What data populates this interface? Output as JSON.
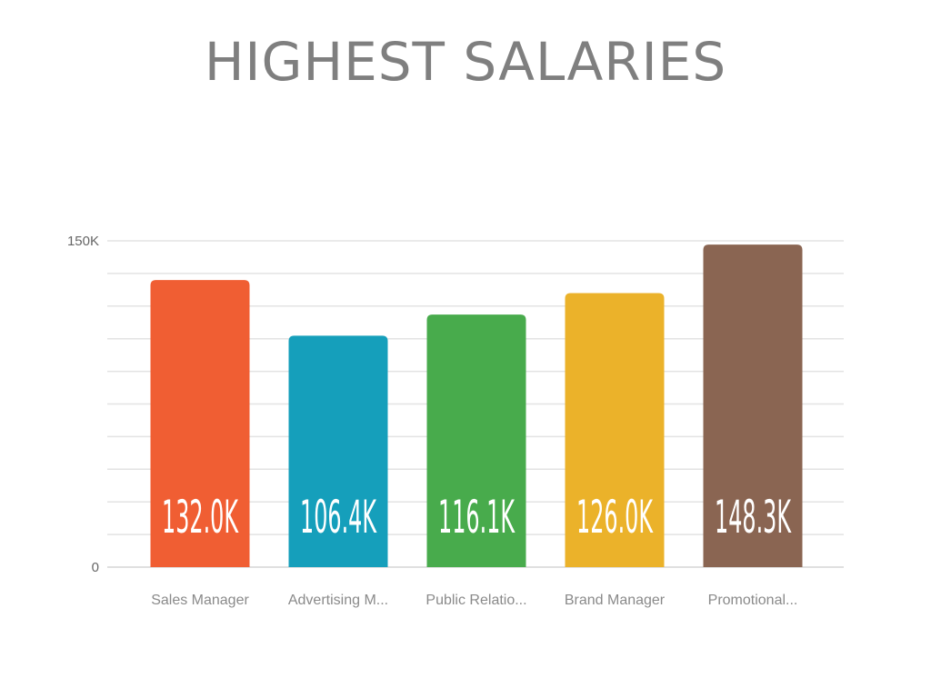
{
  "chart_data": {
    "type": "bar",
    "title": "HIGHEST SALARIES",
    "xlabel": "",
    "ylabel": "",
    "categories": [
      "Sales Manager",
      "Advertising M...",
      "Public Relatio...",
      "Brand Manager",
      "Promotional..."
    ],
    "values": [
      132.0,
      106.4,
      116.1,
      126.0,
      148.3
    ],
    "value_labels": [
      "132.0K",
      "106.4K",
      "116.1K",
      "126.0K",
      "148.3K"
    ],
    "colors": [
      "#f05e33",
      "#159fbb",
      "#48ab4c",
      "#ebb22a",
      "#8a6552"
    ],
    "ylim": [
      0,
      150
    ],
    "y_tick_labels": [
      {
        "value": 0,
        "label": "0"
      },
      {
        "value": 150,
        "label": "150K"
      }
    ],
    "grid": true,
    "grid_step": 15,
    "legend": "none"
  }
}
